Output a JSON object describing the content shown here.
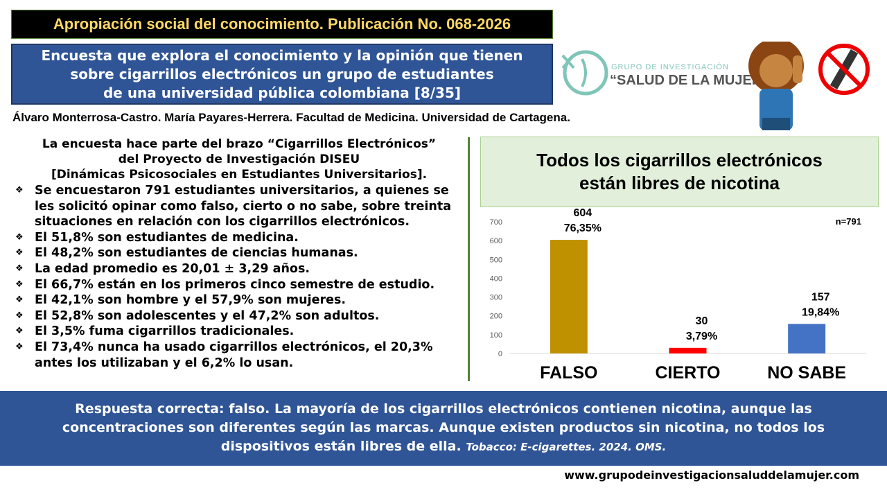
{
  "header": {
    "publication": "Apropiación social del conocimiento. Publicación No. 068-2026",
    "title_lines": [
      "Encuesta que explora el conocimiento y la opinión que tienen",
      "sobre cigarrillos electrónicos un grupo de estudiantes",
      "de una universidad pública colombiana [8/35]"
    ],
    "authors": "Álvaro Monterrosa-Castro. María Payares-Herrera. Facultad de Medicina. Universidad de Cartagena.",
    "logo_line1": "GRUPO DE INVESTIGACIÓN",
    "logo_line2": "“SALUD DE LA MUJER”"
  },
  "intro": [
    "La encuesta hace parte del brazo “Cigarrillos Electrónicos”",
    "del Proyecto de Investigación DISEU",
    "[Dinámicas Psicosociales en Estudiantes Universitarios]."
  ],
  "bullets": [
    "Se encuestaron 791 estudiantes universitarios, a quienes se les solicitó opinar como falso, cierto o no sabe, sobre treinta situaciones en relación con los cigarrillos electrónicos.",
    "El 51,8% son estudiantes de medicina.",
    "El 48,2% son estudiantes de ciencias humanas.",
    "La edad promedio es 20,01 ± 3,29 años.",
    "El 66,7% están en los primeros cinco semestre de estudio.",
    "El 42,1% son hombre y el 57,9% son mujeres.",
    "El 52,8% son adolescentes y el 47,2% son adultos.",
    "El 3,5% fuma cigarrillos tradicionales.",
    "El 73,4% nunca ha usado cigarrillos electrónicos, el 20,3% antes los utilizaban y el 6,2% lo usan."
  ],
  "chart_data": {
    "type": "bar",
    "title": [
      "Todos los cigarrillos electrónicos",
      "están libres de nicotina"
    ],
    "note": "n=791",
    "categories": [
      "FALSO",
      "CIERTO",
      "NO SABE"
    ],
    "values": [
      604,
      30,
      157
    ],
    "percent_labels": [
      "76,35%",
      "3,79%",
      "19,84%"
    ],
    "colors": [
      "#bf9000",
      "#ff0000",
      "#4472c4"
    ],
    "ylim": [
      0,
      700
    ],
    "yticks": [
      0,
      100,
      200,
      300,
      400,
      500,
      600,
      700
    ],
    "grid": false
  },
  "footer": {
    "answer_lines": [
      "Respuesta correcta: falso. La mayoría de los cigarrillos electrónicos contienen nicotina, aunque las",
      "concentraciones son diferentes según las marcas. Aunque existen productos sin nicotina, no todos los",
      "dispositivos están libres de ella."
    ],
    "source": "Tobacco: E-cigarettes. 2024. OMS.",
    "website": "www.grupodeinvestigacionsaluddelamujer.com"
  }
}
